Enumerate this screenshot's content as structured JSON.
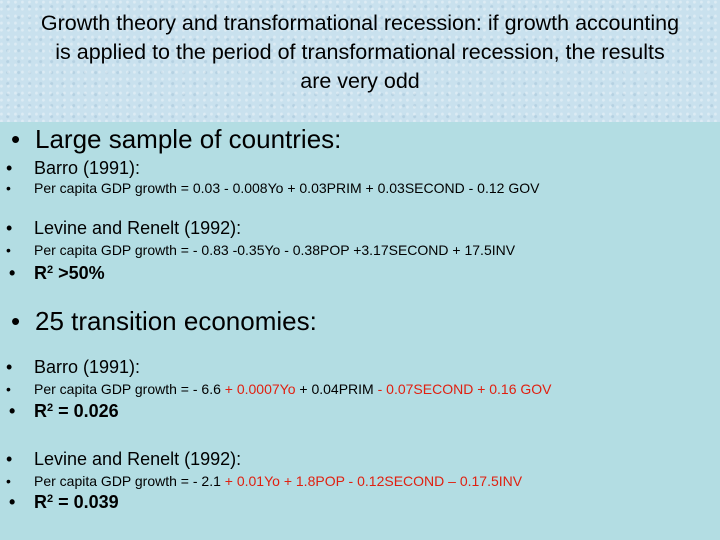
{
  "title": "Growth theory and transformational recession: if growth accounting is applied to the period of transformational recession, the results are very odd",
  "bullet": "•",
  "section1": {
    "heading": "Large sample of countries:",
    "barro_label": "Barro (1991):",
    "barro_eq": "Per capita GDP growth = 0.03 - 0.008Yo + 0.03PRIM + 0.03SECOND  - 0.12 GOV",
    "levine_label": "Levine and Renelt (1992):",
    "levine_eq": "Per capita GDP growth = - 0.83 -0.35Yo - 0.38POP +3.17SECOND + 17.5INV",
    "r2_label": "R",
    "r2_sup": "2",
    "r2_value": " >50%"
  },
  "section2": {
    "heading": "25 transition economies:",
    "barro_label": "Barro (1991):",
    "barro_eq": {
      "p1": "Per capita GDP growth = - 6.6 ",
      "p2": "+ 0.0007Yo",
      "p3": " + 0.04PRIM ",
      "p4": "- 0.07SECOND  + 0.16 GOV"
    },
    "barro_r2_label": "R",
    "barro_r2_sup": "2",
    "barro_r2_value": " = 0.026",
    "levine_label": "Levine and Renelt (1992):",
    "levine_eq": {
      "p1": "Per capita GDP growth = - 2.1 ",
      "p2": "+ 0.01Yo + 1.8POP - 0.12SECOND – 0.17.5INV"
    },
    "levine_r2_label": "R",
    "levine_r2_sup": "2",
    "levine_r2_value": " = 0.039"
  },
  "colors": {
    "background": "#b3dde3",
    "header": "#c9e1ee",
    "highlight": "#e02010"
  }
}
